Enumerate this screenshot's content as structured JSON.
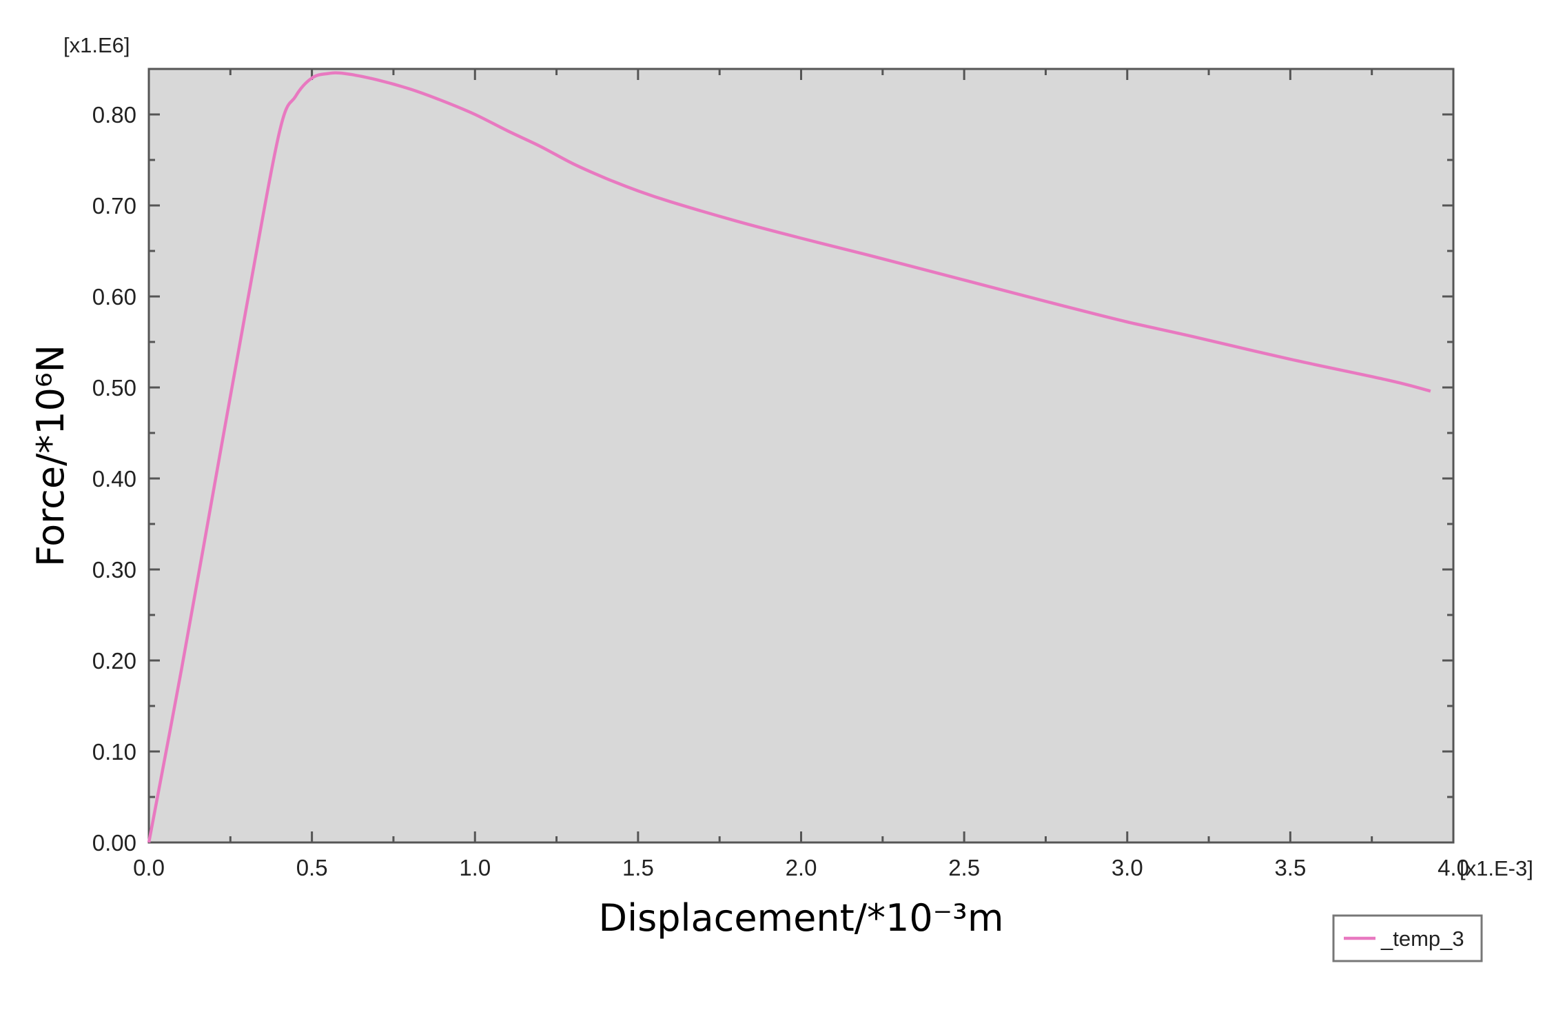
{
  "chart_data": {
    "type": "line",
    "title": "",
    "xlabel": "Displacement/*10⁻³m",
    "ylabel": "Force/*10⁶N",
    "x_multiplier": "[x1.E-3]",
    "y_multiplier": "[x1.E6]",
    "xlim": [
      0.0,
      4.0
    ],
    "ylim": [
      0.0,
      0.85
    ],
    "x_ticks": [
      0.0,
      0.5,
      1.0,
      1.5,
      2.0,
      2.5,
      3.0,
      3.5,
      4.0
    ],
    "x_tick_labels": [
      "0.0",
      "0.5",
      "1.0",
      "1.5",
      "2.0",
      "2.5",
      "3.0",
      "3.5",
      "4.0"
    ],
    "y_ticks": [
      0.0,
      0.1,
      0.2,
      0.3,
      0.4,
      0.5,
      0.6,
      0.7,
      0.8
    ],
    "y_tick_labels": [
      "0.00",
      "0.10",
      "0.20",
      "0.30",
      "0.40",
      "0.50",
      "0.60",
      "0.70",
      "0.80"
    ],
    "grid": false,
    "plot_background": "#d8d8d8",
    "legend_position": "bottom-right",
    "series": [
      {
        "name": "_temp_3",
        "color": "#e879c0",
        "x": [
          0.0,
          0.1,
          0.2,
          0.3,
          0.4,
          0.45,
          0.5,
          0.55,
          0.6,
          0.7,
          0.8,
          0.9,
          1.0,
          1.1,
          1.2,
          1.3,
          1.4,
          1.5,
          1.6,
          1.8,
          2.0,
          2.2,
          2.5,
          2.8,
          3.0,
          3.2,
          3.5,
          3.8,
          3.93
        ],
        "y": [
          0.0,
          0.19,
          0.39,
          0.59,
          0.78,
          0.82,
          0.84,
          0.845,
          0.845,
          0.838,
          0.828,
          0.815,
          0.8,
          0.782,
          0.765,
          0.746,
          0.73,
          0.716,
          0.704,
          0.683,
          0.664,
          0.646,
          0.618,
          0.59,
          0.572,
          0.556,
          0.531,
          0.508,
          0.496
        ]
      }
    ]
  }
}
